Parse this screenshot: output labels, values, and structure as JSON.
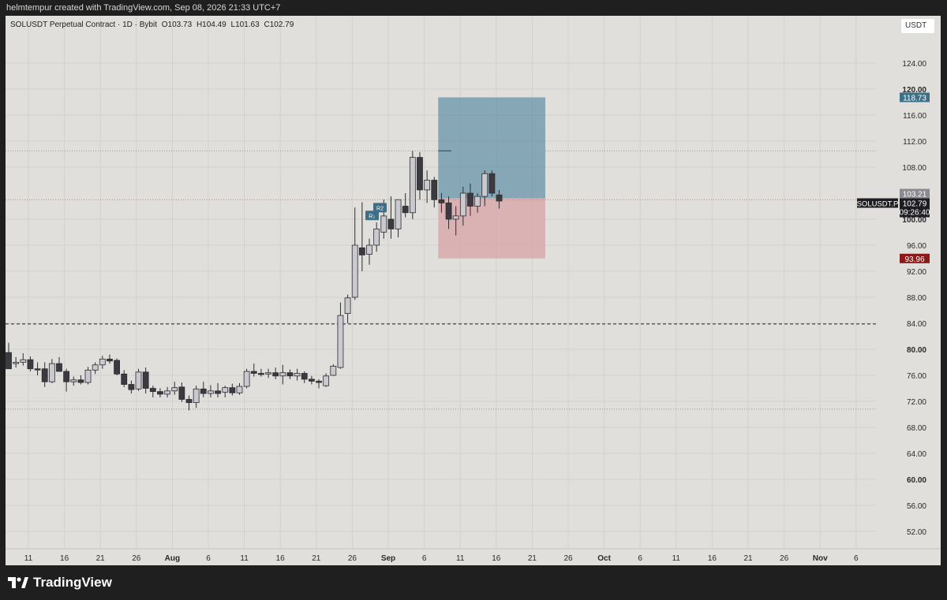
{
  "header": {
    "caption": "helmtempur created with TradingView.com, Sep 08, 2026 21:33 UTC+7"
  },
  "symbol_info": {
    "name": "SOLUSDT Perpetual Contract · 1D · Bybit",
    "open": "O103.73",
    "high": "H104.49",
    "low": "L101.63",
    "close": "C102.79"
  },
  "currency_button": "USDT",
  "price_axis": {
    "ticks": [
      "124.00",
      "120.00",
      "116.00",
      "112.00",
      "108.00",
      "100.00",
      "96.00",
      "92.00",
      "88.00",
      "84.00",
      "80.00",
      "76.00",
      "72.00",
      "68.00",
      "64.00",
      "60.00",
      "56.00",
      "52.00"
    ],
    "bold_ticks": [
      "120.00",
      "100.00",
      "80.00",
      "60.00"
    ]
  },
  "time_axis": {
    "ticks": [
      "11",
      "16",
      "21",
      "26",
      "Aug",
      "6",
      "11",
      "16",
      "21",
      "26",
      "Sep",
      "6",
      "11",
      "16",
      "21",
      "26",
      "Oct",
      "6",
      "11",
      "16",
      "21",
      "26",
      "Nov",
      "6"
    ],
    "bold_ticks": [
      "Aug",
      "Sep",
      "Oct",
      "Nov"
    ]
  },
  "price_labels": {
    "target": "118.73",
    "entry": "103.21",
    "current": "102.79",
    "countdown": "09:26:40",
    "symbol_tag": "SOLUSDT.P",
    "stop": "93.96"
  },
  "chart_markers": {
    "r2": "R2",
    "r1": "R↓"
  },
  "colors": {
    "background": "#e0dfdb",
    "bull_candle": "#c9c9cf",
    "bear_candle": "#3a3a40",
    "target_zone": "#5f8ea5",
    "stop_zone": "#d9a3a6",
    "target_label": "#3d6f87",
    "stop_label": "#8b1a1a",
    "current_label": "#1e1e22"
  },
  "brand": "TradingView",
  "chart_data": {
    "type": "candlestick",
    "title": "SOLUSDT Perpetual Contract · 1D · Bybit",
    "ylim": [
      48,
      128
    ],
    "candles": [
      {
        "date": "Jul 07",
        "o": 79.5,
        "h": 81.0,
        "l": 77.0,
        "c": 77.0
      },
      {
        "date": "Jul 08",
        "o": 77.8,
        "h": 78.8,
        "l": 77.2,
        "c": 78.0
      },
      {
        "date": "Jul 09",
        "o": 78.0,
        "h": 79.4,
        "l": 77.5,
        "c": 78.4
      },
      {
        "date": "Jul 10",
        "o": 78.4,
        "h": 78.9,
        "l": 76.6,
        "c": 77.0
      },
      {
        "date": "Jul 11",
        "o": 77.0,
        "h": 78.0,
        "l": 76.0,
        "c": 76.9
      },
      {
        "date": "Jul 12",
        "o": 77.0,
        "h": 78.0,
        "l": 74.2,
        "c": 75.0
      },
      {
        "date": "Jul 13",
        "o": 75.0,
        "h": 78.5,
        "l": 74.8,
        "c": 77.8
      },
      {
        "date": "Jul 14",
        "o": 77.8,
        "h": 78.8,
        "l": 77.0,
        "c": 76.6
      },
      {
        "date": "Jul 15",
        "o": 76.6,
        "h": 77.0,
        "l": 73.5,
        "c": 75.0
      },
      {
        "date": "Jul 16",
        "o": 75.0,
        "h": 75.8,
        "l": 74.4,
        "c": 75.3
      },
      {
        "date": "Jul 17",
        "o": 75.3,
        "h": 76.0,
        "l": 74.6,
        "c": 74.9
      },
      {
        "date": "Jul 18",
        "o": 74.9,
        "h": 77.3,
        "l": 74.6,
        "c": 76.8
      },
      {
        "date": "Jul 19",
        "o": 76.8,
        "h": 78.0,
        "l": 76.2,
        "c": 77.6
      },
      {
        "date": "Jul 20",
        "o": 77.6,
        "h": 79.0,
        "l": 77.0,
        "c": 78.5
      },
      {
        "date": "Jul 21",
        "o": 78.5,
        "h": 79.2,
        "l": 77.8,
        "c": 78.2
      },
      {
        "date": "Jul 22",
        "o": 78.3,
        "h": 78.6,
        "l": 76.0,
        "c": 76.2
      },
      {
        "date": "Jul 23",
        "o": 76.2,
        "h": 76.8,
        "l": 74.2,
        "c": 74.6
      },
      {
        "date": "Jul 24",
        "o": 74.6,
        "h": 75.2,
        "l": 73.2,
        "c": 73.8
      },
      {
        "date": "Jul 25",
        "o": 73.9,
        "h": 77.0,
        "l": 73.6,
        "c": 76.5
      },
      {
        "date": "Jul 26",
        "o": 76.5,
        "h": 77.2,
        "l": 73.2,
        "c": 74.0
      },
      {
        "date": "Jul 27",
        "o": 74.0,
        "h": 74.4,
        "l": 72.6,
        "c": 73.5
      },
      {
        "date": "Jul 28",
        "o": 73.5,
        "h": 74.0,
        "l": 72.6,
        "c": 73.1
      },
      {
        "date": "Jul 29",
        "o": 73.1,
        "h": 74.2,
        "l": 72.6,
        "c": 73.6
      },
      {
        "date": "Jul 30",
        "o": 73.6,
        "h": 75.0,
        "l": 73.0,
        "c": 74.1
      },
      {
        "date": "Jul 31",
        "o": 74.2,
        "h": 74.9,
        "l": 71.9,
        "c": 72.3
      },
      {
        "date": "Aug 01",
        "o": 72.3,
        "h": 72.9,
        "l": 70.6,
        "c": 71.8
      },
      {
        "date": "Aug 02",
        "o": 71.8,
        "h": 74.4,
        "l": 71.0,
        "c": 73.9
      },
      {
        "date": "Aug 03",
        "o": 73.9,
        "h": 75.0,
        "l": 72.6,
        "c": 73.2
      },
      {
        "date": "Aug 04",
        "o": 73.2,
        "h": 74.5,
        "l": 72.6,
        "c": 73.6
      },
      {
        "date": "Aug 05",
        "o": 73.6,
        "h": 74.8,
        "l": 72.6,
        "c": 73.2
      },
      {
        "date": "Aug 06",
        "o": 73.4,
        "h": 74.4,
        "l": 72.6,
        "c": 74.1
      },
      {
        "date": "Aug 07",
        "o": 74.1,
        "h": 74.7,
        "l": 72.9,
        "c": 73.3
      },
      {
        "date": "Aug 08",
        "o": 73.3,
        "h": 74.8,
        "l": 73.0,
        "c": 74.3
      },
      {
        "date": "Aug 09",
        "o": 74.3,
        "h": 77.0,
        "l": 74.0,
        "c": 76.6
      },
      {
        "date": "Aug 10",
        "o": 76.6,
        "h": 77.8,
        "l": 75.8,
        "c": 76.3
      },
      {
        "date": "Aug 11",
        "o": 76.3,
        "h": 77.0,
        "l": 75.8,
        "c": 76.2
      },
      {
        "date": "Aug 12",
        "o": 76.2,
        "h": 77.0,
        "l": 75.6,
        "c": 76.4
      },
      {
        "date": "Aug 13",
        "o": 76.4,
        "h": 77.2,
        "l": 75.4,
        "c": 75.9
      },
      {
        "date": "Aug 14",
        "o": 75.9,
        "h": 77.6,
        "l": 74.6,
        "c": 76.4
      },
      {
        "date": "Aug 15",
        "o": 76.4,
        "h": 76.9,
        "l": 75.4,
        "c": 75.9
      },
      {
        "date": "Aug 16",
        "o": 75.9,
        "h": 77.0,
        "l": 75.2,
        "c": 76.3
      },
      {
        "date": "Aug 17",
        "o": 76.3,
        "h": 76.6,
        "l": 74.8,
        "c": 75.4
      },
      {
        "date": "Aug 18",
        "o": 75.4,
        "h": 75.9,
        "l": 74.6,
        "c": 75.1
      },
      {
        "date": "Aug 19",
        "o": 75.1,
        "h": 75.4,
        "l": 74.0,
        "c": 74.9
      },
      {
        "date": "Aug 20",
        "o": 74.4,
        "h": 76.3,
        "l": 74.2,
        "c": 75.9
      },
      {
        "date": "Aug 21",
        "o": 76.0,
        "h": 77.7,
        "l": 75.9,
        "c": 77.4
      },
      {
        "date": "Aug 22",
        "o": 77.2,
        "h": 87.2,
        "l": 77.0,
        "c": 85.2
      },
      {
        "date": "Aug 23",
        "o": 85.5,
        "h": 88.4,
        "l": 84.0,
        "c": 87.9
      },
      {
        "date": "Aug 24",
        "o": 88.0,
        "h": 101.8,
        "l": 87.6,
        "c": 96.0
      },
      {
        "date": "Aug 25",
        "o": 95.6,
        "h": 102.6,
        "l": 92.0,
        "c": 94.5
      },
      {
        "date": "Aug 26",
        "o": 94.6,
        "h": 97.0,
        "l": 93.0,
        "c": 96.0
      },
      {
        "date": "Aug 27",
        "o": 96.0,
        "h": 99.5,
        "l": 95.0,
        "c": 98.5
      },
      {
        "date": "Aug 28",
        "o": 98.0,
        "h": 103.0,
        "l": 97.0,
        "c": 100.5
      },
      {
        "date": "Aug 29",
        "o": 100.0,
        "h": 103.5,
        "l": 97.0,
        "c": 98.5
      },
      {
        "date": "Aug 30",
        "o": 98.5,
        "h": 103.0,
        "l": 97.2,
        "c": 103.0
      },
      {
        "date": "Aug 31",
        "o": 102.0,
        "h": 104.0,
        "l": 100.3,
        "c": 101.0
      },
      {
        "date": "Sep 01",
        "o": 101.0,
        "h": 110.5,
        "l": 100.0,
        "c": 109.5
      },
      {
        "date": "Sep 02",
        "o": 109.5,
        "h": 110.3,
        "l": 103.0,
        "c": 104.5
      },
      {
        "date": "Sep 03",
        "o": 104.5,
        "h": 107.5,
        "l": 102.5,
        "c": 106.0
      },
      {
        "date": "Sep 04",
        "o": 106.0,
        "h": 106.5,
        "l": 101.8,
        "c": 103.0
      },
      {
        "date": "Sep 05",
        "o": 103.0,
        "h": 104.0,
        "l": 101.0,
        "c": 102.5
      },
      {
        "date": "Sep 06",
        "o": 102.5,
        "h": 103.5,
        "l": 98.5,
        "c": 100.0
      },
      {
        "date": "Sep 07",
        "o": 100.0,
        "h": 102.0,
        "l": 97.5,
        "c": 100.5
      },
      {
        "date": "Sep 08",
        "o": 100.5,
        "h": 105.0,
        "l": 99.0,
        "c": 104.0
      },
      {
        "date": "Sep 09",
        "o": 104.0,
        "h": 105.5,
        "l": 100.5,
        "c": 102.0
      },
      {
        "date": "Sep 10",
        "o": 102.0,
        "h": 104.0,
        "l": 101.0,
        "c": 103.5
      },
      {
        "date": "Sep 11",
        "o": 103.5,
        "h": 107.5,
        "l": 102.0,
        "c": 107.0
      },
      {
        "date": "Sep 12",
        "o": 107.0,
        "h": 107.5,
        "l": 103.5,
        "c": 104.0
      },
      {
        "date": "Sep 13",
        "o": 103.73,
        "h": 104.49,
        "l": 101.63,
        "c": 102.79
      }
    ],
    "position_tool": {
      "type": "long",
      "entry": 103.21,
      "target": 118.73,
      "stop": 93.96,
      "start_candle": 59,
      "end_candle": 81
    },
    "horizontal_lines": [
      {
        "price": 110.5,
        "style": "dotted",
        "color": "#c98a8a"
      },
      {
        "price": 103.0,
        "style": "dotted",
        "color": "#d07a7a"
      },
      {
        "price": 83.9,
        "style": "dashed",
        "color": "#222222"
      },
      {
        "price": 70.8,
        "style": "dotted",
        "color": "#999999"
      }
    ],
    "segment_line": {
      "price": 110.5,
      "start_candle": 59,
      "end_candle": 69,
      "color": "#2f5a73"
    }
  }
}
